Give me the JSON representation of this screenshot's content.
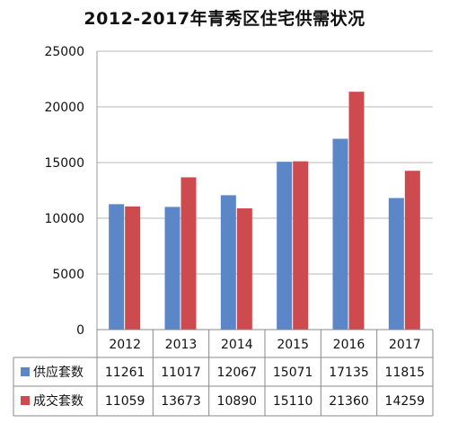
{
  "chart_data": {
    "type": "bar",
    "title": "2012-2017年青秀区住宅供需状况",
    "categories": [
      "2012",
      "2013",
      "2014",
      "2015",
      "2016",
      "2017"
    ],
    "series": [
      {
        "name": "供应套数",
        "values": [
          11261,
          11017,
          12067,
          15071,
          17135,
          11815
        ],
        "color": "#5b87c9"
      },
      {
        "name": "成交套数",
        "values": [
          11059,
          13673,
          10890,
          15110,
          21360,
          14259
        ],
        "color": "#cd4a4f"
      }
    ],
    "ylim": [
      0,
      25000
    ],
    "yticks": [
      0,
      5000,
      10000,
      15000,
      20000,
      25000
    ],
    "grid": "horizontal",
    "legend": "data-table"
  }
}
